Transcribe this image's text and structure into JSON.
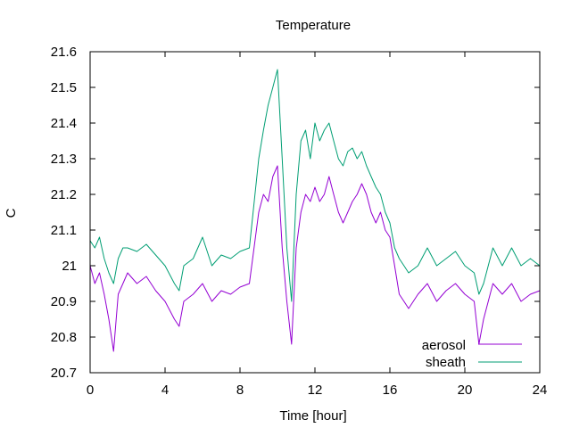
{
  "chart_data": {
    "type": "line",
    "title": "Temperature",
    "xlabel": "Time [hour]",
    "ylabel": "C",
    "xlim": [
      0,
      24
    ],
    "ylim": [
      20.7,
      21.6
    ],
    "x_ticks": [
      "0",
      "4",
      "8",
      "12",
      "16",
      "20",
      "24"
    ],
    "y_ticks": [
      "20.7",
      "20.8",
      "20.9",
      "21",
      "21.1",
      "21.2",
      "21.3",
      "21.4",
      "21.5",
      "21.6"
    ],
    "grid": false,
    "legend_position": "bottom-right",
    "series": [
      {
        "name": "aerosol",
        "color": "#9400d3",
        "x": [
          0,
          0.25,
          0.5,
          0.75,
          1.0,
          1.25,
          1.5,
          1.75,
          2.0,
          2.5,
          3.0,
          3.5,
          4.0,
          4.5,
          4.75,
          5.0,
          5.5,
          6.0,
          6.5,
          7.0,
          7.5,
          8.0,
          8.5,
          9.0,
          9.25,
          9.5,
          9.75,
          10.0,
          10.25,
          10.5,
          10.75,
          11.0,
          11.25,
          11.5,
          11.75,
          12.0,
          12.25,
          12.5,
          12.75,
          13.0,
          13.25,
          13.5,
          13.75,
          14.0,
          14.25,
          14.5,
          14.75,
          15.0,
          15.25,
          15.5,
          15.75,
          16.0,
          16.25,
          16.5,
          16.75,
          17.0,
          17.5,
          18.0,
          18.5,
          19.0,
          19.5,
          20.0,
          20.5,
          20.75,
          21.0,
          21.5,
          22.0,
          22.5,
          23.0,
          23.5,
          24.0
        ],
        "values": [
          21.0,
          20.95,
          20.98,
          20.92,
          20.85,
          20.76,
          20.92,
          20.95,
          20.98,
          20.95,
          20.97,
          20.93,
          20.9,
          20.85,
          20.83,
          20.9,
          20.92,
          20.95,
          20.9,
          20.93,
          20.92,
          20.94,
          20.95,
          21.15,
          21.2,
          21.18,
          21.25,
          21.28,
          21.05,
          20.9,
          20.78,
          21.05,
          21.15,
          21.2,
          21.18,
          21.22,
          21.18,
          21.2,
          21.25,
          21.2,
          21.15,
          21.12,
          21.15,
          21.18,
          21.2,
          21.23,
          21.2,
          21.15,
          21.12,
          21.15,
          21.1,
          21.08,
          21.0,
          20.92,
          20.9,
          20.88,
          20.92,
          20.95,
          20.9,
          20.93,
          20.95,
          20.92,
          20.9,
          20.78,
          20.85,
          20.95,
          20.92,
          20.95,
          20.9,
          20.92,
          20.93
        ]
      },
      {
        "name": "sheath",
        "color": "#009e73",
        "x": [
          0,
          0.25,
          0.5,
          0.75,
          1.0,
          1.25,
          1.5,
          1.75,
          2.0,
          2.5,
          3.0,
          3.5,
          4.0,
          4.5,
          4.75,
          5.0,
          5.5,
          6.0,
          6.5,
          7.0,
          7.5,
          8.0,
          8.5,
          9.0,
          9.25,
          9.5,
          9.75,
          10.0,
          10.25,
          10.5,
          10.75,
          11.0,
          11.25,
          11.5,
          11.75,
          12.0,
          12.25,
          12.5,
          12.75,
          13.0,
          13.25,
          13.5,
          13.75,
          14.0,
          14.25,
          14.5,
          14.75,
          15.0,
          15.25,
          15.5,
          15.75,
          16.0,
          16.25,
          16.5,
          16.75,
          17.0,
          17.5,
          18.0,
          18.5,
          19.0,
          19.5,
          20.0,
          20.5,
          20.75,
          21.0,
          21.5,
          22.0,
          22.5,
          23.0,
          23.5,
          24.0
        ],
        "values": [
          21.07,
          21.05,
          21.08,
          21.02,
          20.98,
          20.95,
          21.02,
          21.05,
          21.05,
          21.04,
          21.06,
          21.03,
          21.0,
          20.95,
          20.93,
          21.0,
          21.02,
          21.08,
          21.0,
          21.03,
          21.02,
          21.04,
          21.05,
          21.3,
          21.38,
          21.45,
          21.5,
          21.55,
          21.3,
          21.05,
          20.9,
          21.2,
          21.35,
          21.38,
          21.3,
          21.4,
          21.35,
          21.38,
          21.4,
          21.35,
          21.3,
          21.28,
          21.32,
          21.33,
          21.3,
          21.32,
          21.28,
          21.25,
          21.22,
          21.2,
          21.15,
          21.12,
          21.05,
          21.02,
          21.0,
          20.98,
          21.0,
          21.05,
          21.0,
          21.02,
          21.04,
          21.0,
          20.98,
          20.92,
          20.95,
          21.05,
          21.0,
          21.05,
          21.0,
          21.02,
          21.0
        ]
      }
    ]
  }
}
